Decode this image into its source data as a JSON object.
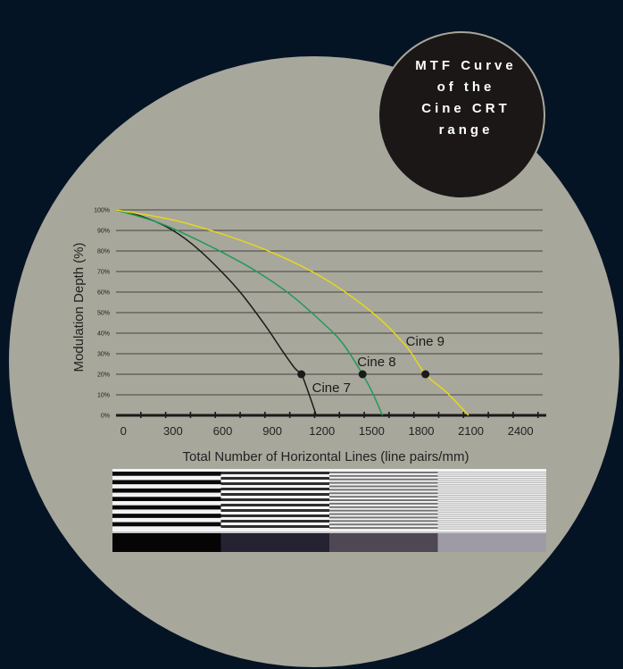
{
  "title_lines": [
    "MTF Curve",
    "of the",
    "Cine CRT",
    "range"
  ],
  "colors": {
    "background": "#041424",
    "disc": "#a8a79b",
    "title_disc": "#1b1717",
    "cine7": "#1a1a1a",
    "cine8": "#1f9a5a",
    "cine9": "#e5d81e"
  },
  "chart_data": {
    "type": "line",
    "xlabel": "Total Number of Horizontal Lines (line pairs/mm)",
    "ylabel": "Modulation Depth (%)",
    "xlim": [
      -50,
      2550
    ],
    "ylim": [
      0,
      100
    ],
    "x_ticks": [
      0,
      300,
      600,
      900,
      1200,
      1500,
      1800,
      2100,
      2400
    ],
    "y_ticks": [
      "0%",
      "10%",
      "20%",
      "30%",
      "40%",
      "50%",
      "60%",
      "70%",
      "80%",
      "90%",
      "100%"
    ],
    "y_tick_values": [
      0,
      10,
      20,
      30,
      40,
      50,
      60,
      70,
      80,
      90,
      100
    ],
    "grid": true,
    "series": [
      {
        "name": "Cine 7",
        "color": "#1a1a1a",
        "x": [
          -50,
          100,
          250,
          400,
          550,
          700,
          850,
          950,
          1030,
          1070,
          1100,
          1160
        ],
        "y": [
          100,
          97,
          92,
          84,
          73,
          60,
          44,
          32,
          23,
          20,
          14,
          0
        ],
        "marker": {
          "x": 1070,
          "y": 20
        }
      },
      {
        "name": "Cine 8",
        "color": "#1f9a5a",
        "x": [
          -50,
          200,
          400,
          600,
          800,
          1000,
          1200,
          1320,
          1440,
          1500,
          1560
        ],
        "y": [
          100,
          94,
          87,
          79,
          70,
          59,
          45,
          35,
          20,
          11,
          0
        ],
        "marker": {
          "x": 1440,
          "y": 20
        }
      },
      {
        "name": "Cine 9",
        "color": "#e5d81e",
        "x": [
          -50,
          300,
          600,
          900,
          1200,
          1500,
          1700,
          1820,
          1950,
          2080
        ],
        "y": [
          100,
          95,
          88,
          79,
          67,
          50,
          34,
          20,
          11,
          0
        ],
        "marker": {
          "x": 1820,
          "y": 20
        }
      }
    ]
  }
}
